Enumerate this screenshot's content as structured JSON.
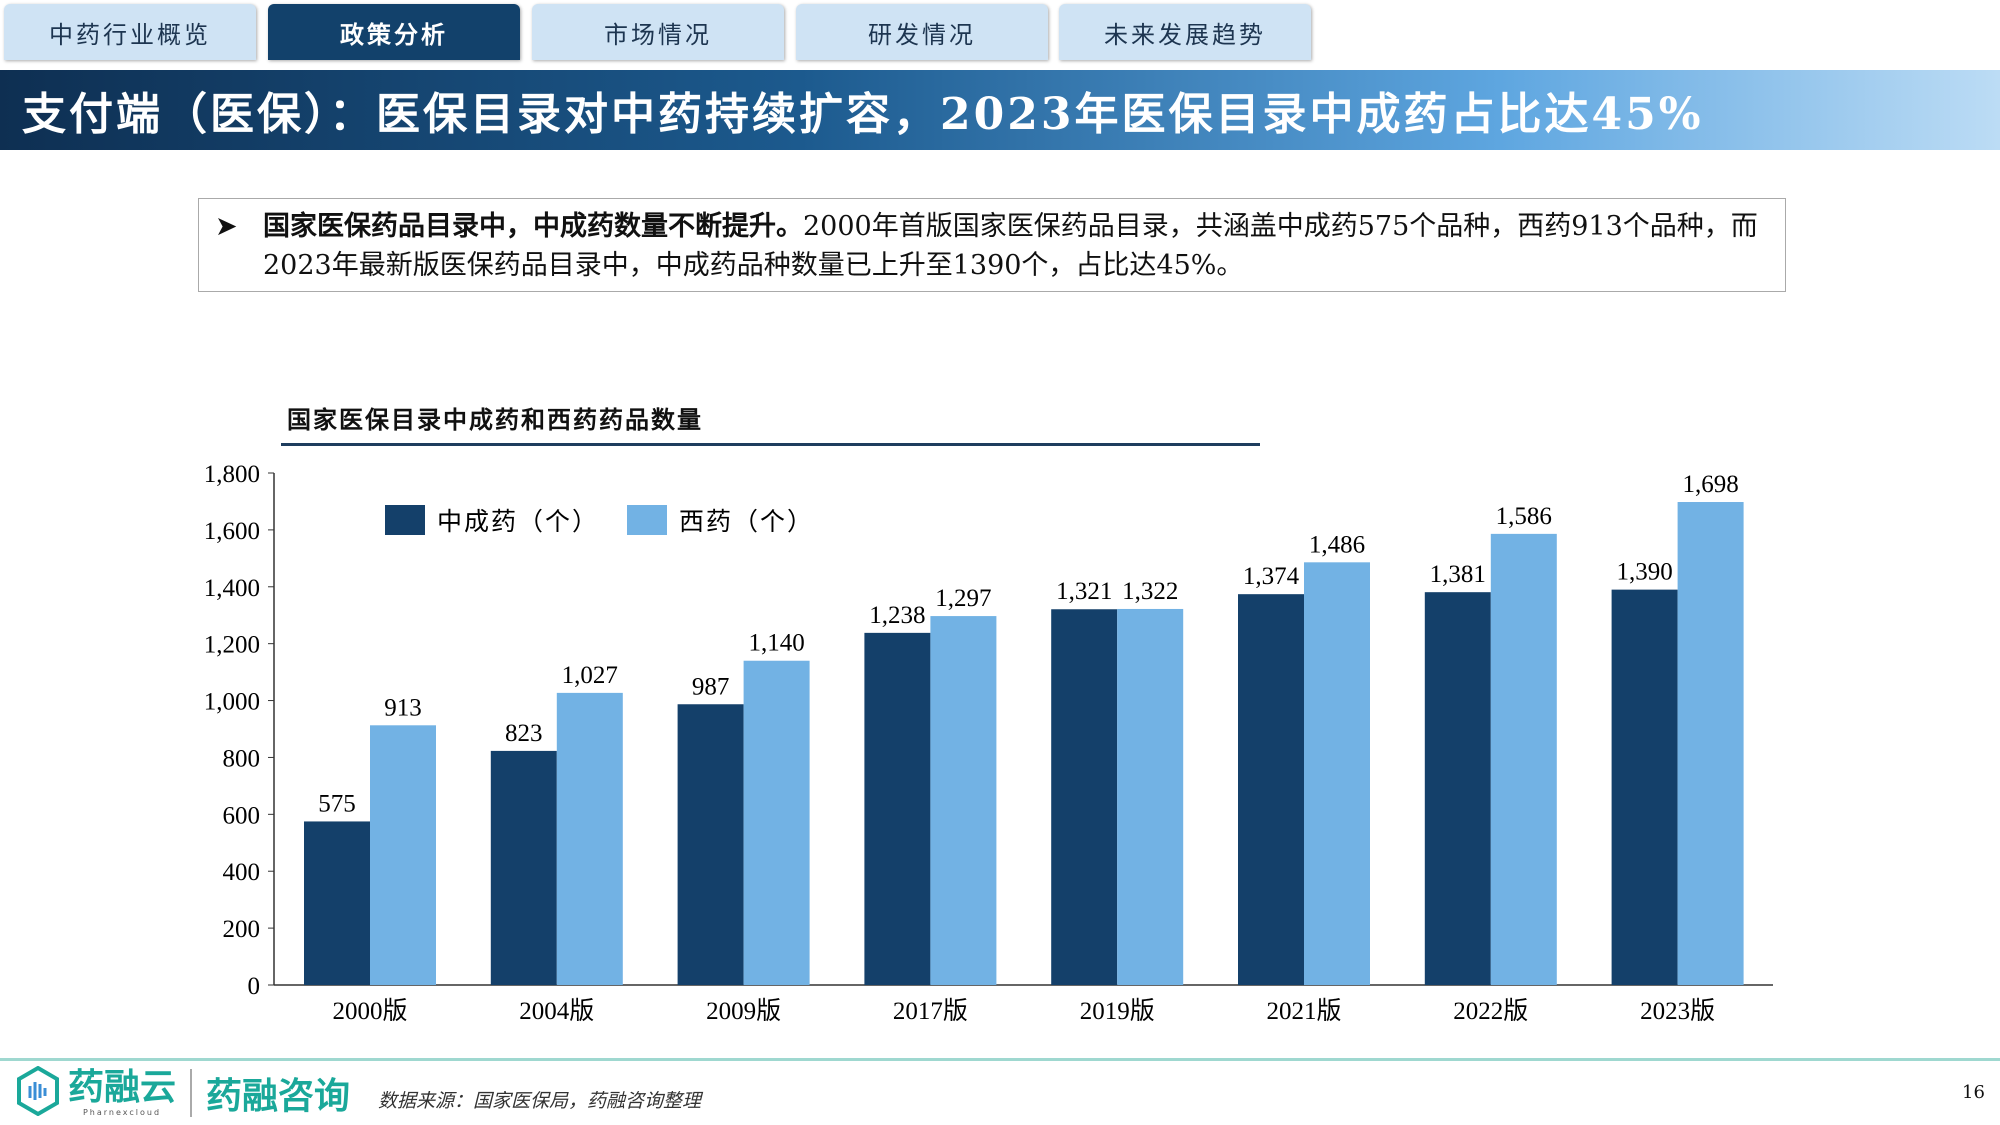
{
  "tabs": [
    "中药行业概览",
    "政策分析",
    "市场情况",
    "研发情况",
    "未来发展趋势"
  ],
  "active_tab": 1,
  "title": "支付端（医保）：医保目录对中药持续扩容，2023年医保目录中成药占比达45%",
  "summary": {
    "bold": "国家医保药品目录中，中成药数量不断提升。",
    "text": "2000年首版国家医保药品目录，共涵盖中成药575个品种，西药913个品种，而2023年最新版医保药品目录中，中成药品种数量已上升至1390个，占比达45%。"
  },
  "footer": {
    "logo1": "药融云",
    "logo1_sub": "Pharnexcloud",
    "logo2": "药融咨询",
    "source": "数据来源：国家医保局，药融咨询整理",
    "page": "16"
  },
  "chart_data": {
    "type": "bar",
    "title": "国家医保目录中成药和西药药品数量",
    "categories": [
      "2000版",
      "2004版",
      "2009版",
      "2017版",
      "2019版",
      "2021版",
      "2022版",
      "2023版"
    ],
    "series": [
      {
        "name": "中成药（个）",
        "color": "#14406a",
        "values": [
          575,
          823,
          987,
          1238,
          1321,
          1374,
          1381,
          1390
        ],
        "labels": [
          "575",
          "823",
          "987",
          "1,238",
          "1,321",
          "1,374",
          "1,381",
          "1,390"
        ]
      },
      {
        "name": "西药（个）",
        "color": "#72b2e4",
        "values": [
          913,
          1027,
          1140,
          1297,
          1322,
          1486,
          1586,
          1698
        ],
        "labels": [
          "913",
          "1,027",
          "1,140",
          "1,297",
          "1,322",
          "1,486",
          "1,586",
          "1,698"
        ]
      }
    ],
    "ylim": [
      0,
      1800
    ],
    "yticks": [
      0,
      200,
      400,
      600,
      800,
      1000,
      1200,
      1400,
      1600,
      1800
    ],
    "ytick_labels": [
      "0",
      "200",
      "400",
      "600",
      "800",
      "1,000",
      "1,200",
      "1,400",
      "1,600",
      "1,800"
    ],
    "legend": "top-left",
    "grid": false
  }
}
